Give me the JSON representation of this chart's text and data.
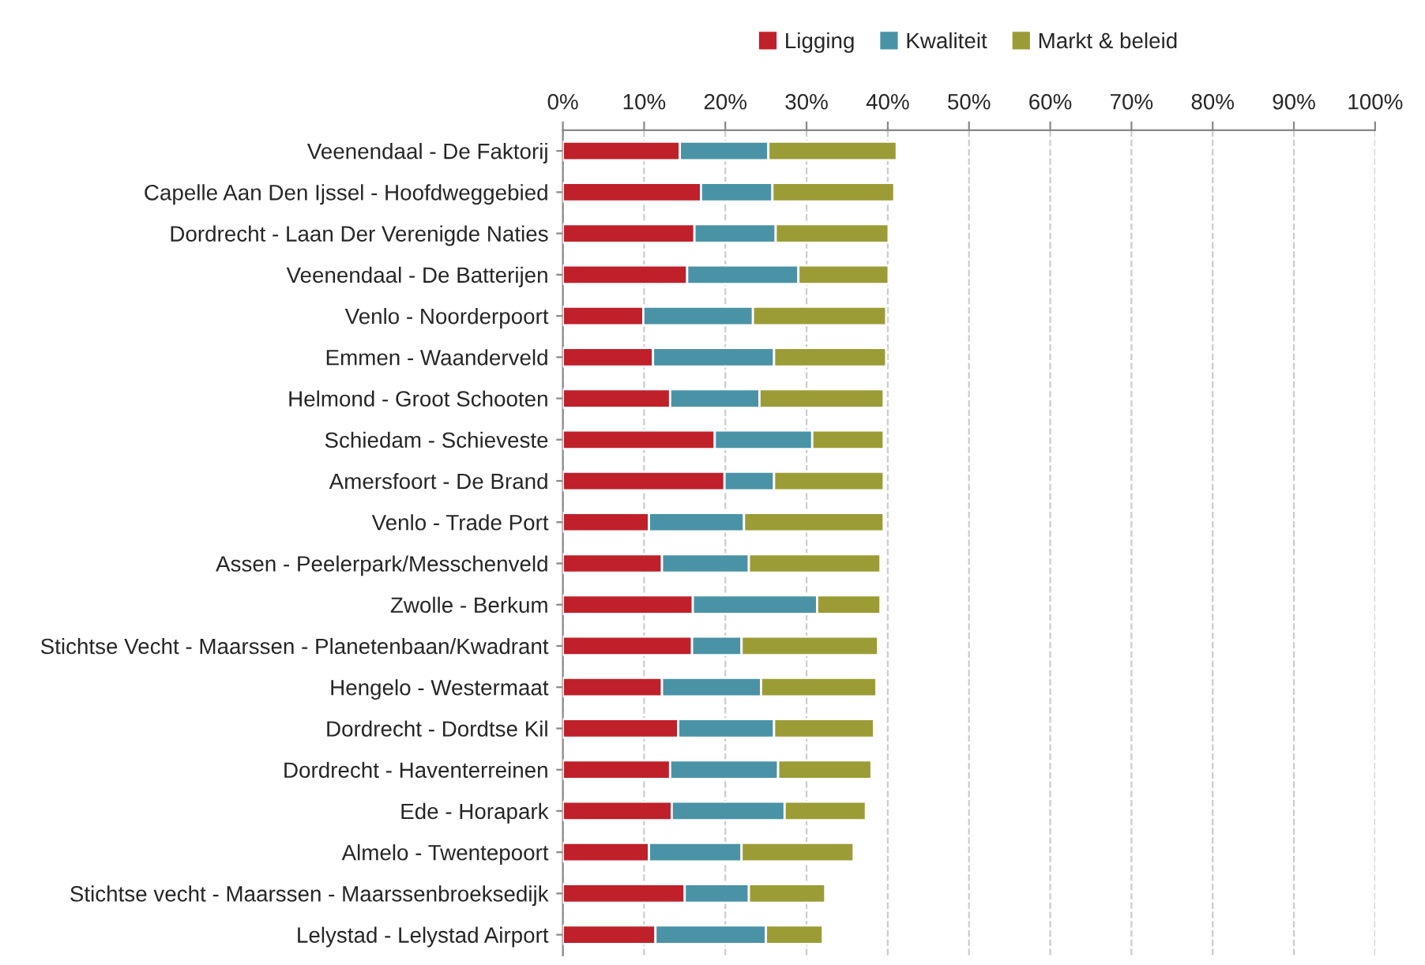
{
  "chart_data": {
    "type": "bar",
    "orientation": "horizontal",
    "stacked": true,
    "legend": "top",
    "grid": "x",
    "categories": [
      "Veenendaal - De Faktorij",
      "Capelle Aan Den Ijssel - Hoofdweggebied",
      "Dordrecht - Laan Der Verenigde Naties",
      "Veenendaal - De Batterijen",
      "Venlo - Noorderpoort",
      "Emmen - Waanderveld",
      "Helmond - Groot Schooten",
      "Schiedam - Schieveste",
      "Amersfoort - De Brand",
      "Venlo - Trade Port",
      "Assen - Peelerpark/Messchenveld",
      "Zwolle - Berkum",
      "Stichtse Vecht - Maarssen - Planetenbaan/Kwadrant",
      "Hengelo - Westermaat",
      "Dordrecht - Dordtse Kil",
      "Dordrecht - Haventerreinen",
      "Ede - Horapark",
      "Almelo - Twentepoort",
      "Stichtse vecht - Maarssen - Maarssenbroeksedijk",
      "Lelystad - Lelystad Airport"
    ],
    "series": [
      {
        "name": "Ligging",
        "color": "#c0202a",
        "values": [
          14.4,
          17.0,
          16.2,
          15.3,
          9.9,
          11.1,
          13.2,
          18.7,
          19.9,
          10.6,
          12.2,
          16.0,
          15.9,
          12.2,
          14.2,
          13.2,
          13.4,
          10.6,
          15.0,
          11.4
        ]
      },
      {
        "name": "Kwaliteit",
        "color": "#4a93a6",
        "values": [
          10.9,
          8.8,
          10.0,
          13.7,
          13.5,
          14.9,
          11.0,
          12.0,
          6.1,
          11.7,
          10.7,
          15.3,
          6.1,
          12.2,
          11.8,
          13.3,
          13.9,
          11.4,
          7.9,
          13.6
        ]
      },
      {
        "name": "Markt & beleid",
        "color": "#9c9c36",
        "values": [
          15.8,
          15.0,
          13.9,
          11.1,
          16.4,
          13.8,
          15.3,
          8.8,
          13.5,
          17.2,
          16.2,
          7.8,
          16.8,
          14.2,
          12.3,
          11.5,
          10.0,
          13.8,
          9.4,
          7.0
        ]
      }
    ],
    "xlim": [
      0,
      100
    ],
    "xticks": [
      {
        "value": 0,
        "label": "0%"
      },
      {
        "value": 10,
        "label": "10%"
      },
      {
        "value": 20,
        "label": "20%"
      },
      {
        "value": 30,
        "label": "30%"
      },
      {
        "value": 40,
        "label": "40%"
      },
      {
        "value": 50,
        "label": "50%"
      },
      {
        "value": 60,
        "label": "60%"
      },
      {
        "value": 70,
        "label": "70%"
      },
      {
        "value": 80,
        "label": "80%"
      },
      {
        "value": 90,
        "label": "90%"
      },
      {
        "value": 100,
        "label": "100%"
      }
    ]
  }
}
